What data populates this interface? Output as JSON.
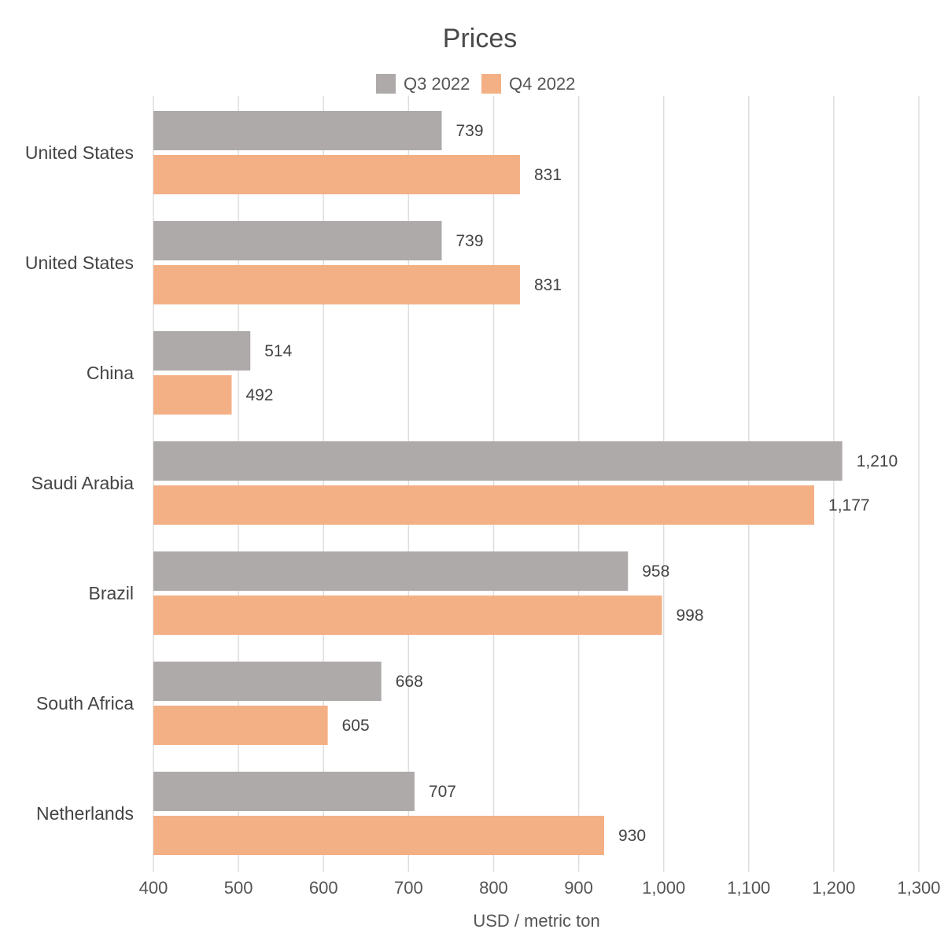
{
  "chart_data": {
    "type": "bar",
    "orientation": "horizontal",
    "title": "Prices",
    "xlabel": "USD / metric ton",
    "ylabel": "",
    "categories": [
      "United States",
      "United States",
      "China",
      "Saudi Arabia",
      "Brazil",
      "South Africa",
      "Netherlands"
    ],
    "series": [
      {
        "name": "Q3 2022",
        "color": "#aeaaa9",
        "values": [
          739,
          739,
          514,
          1210,
          958,
          668,
          707
        ],
        "labels": [
          "739",
          "739",
          "514",
          "1,210",
          "958",
          "668",
          "707"
        ]
      },
      {
        "name": "Q4 2022",
        "color": "#f4b085",
        "values": [
          831,
          831,
          492,
          1177,
          998,
          605,
          930
        ],
        "labels": [
          "831",
          "831",
          "492",
          "1,177",
          "998",
          "605",
          "930"
        ]
      }
    ],
    "xlim": [
      400,
      1300
    ],
    "xticks": [
      400,
      500,
      600,
      700,
      800,
      900,
      1000,
      1100,
      1200,
      1300
    ],
    "xtick_labels": [
      "400",
      "500",
      "600",
      "700",
      "800",
      "900",
      "1,000",
      "1,100",
      "1,200",
      "1,300"
    ],
    "grid": "vertical",
    "legend_position": "top-center"
  }
}
